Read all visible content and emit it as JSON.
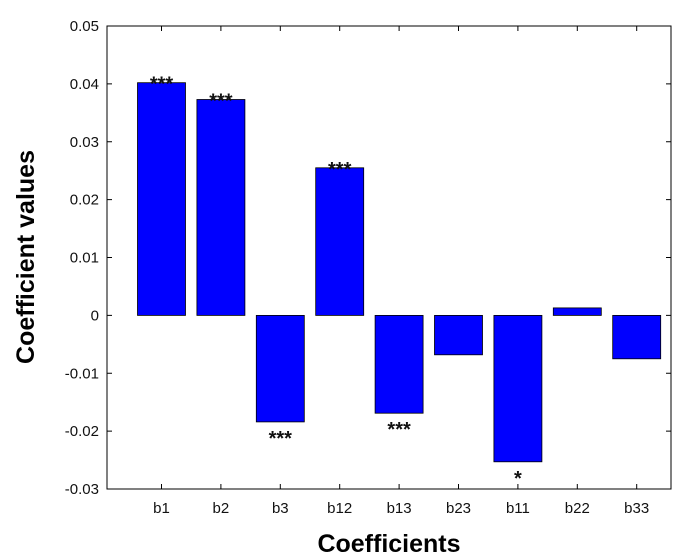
{
  "chart_data": {
    "type": "bar",
    "categories": [
      "b1",
      "b2",
      "b3",
      "b12",
      "b13",
      "b23",
      "b11",
      "b22",
      "b33"
    ],
    "values": [
      0.0402,
      0.0373,
      -0.0184,
      0.0255,
      -0.0169,
      -0.0068,
      -0.0253,
      0.0013,
      -0.0075
    ],
    "significance": [
      "***",
      "***",
      "***",
      "***",
      "***",
      "",
      "*",
      "",
      ""
    ],
    "xlabel": "Coefficients",
    "ylabel": "Coefficient values",
    "ylim": [
      -0.03,
      0.05
    ],
    "yticks": [
      0.05,
      0.04,
      0.03,
      0.02,
      0.01,
      0,
      -0.01,
      -0.02,
      -0.03
    ],
    "ytick_labels": [
      "0.05",
      "0.04",
      "0.03",
      "0.02",
      "0.01",
      "0",
      "-0.01",
      "-0.02",
      "-0.03"
    ],
    "bar_color": "#0000ff",
    "axis_color": "#000000",
    "grid": false,
    "legend": false
  }
}
